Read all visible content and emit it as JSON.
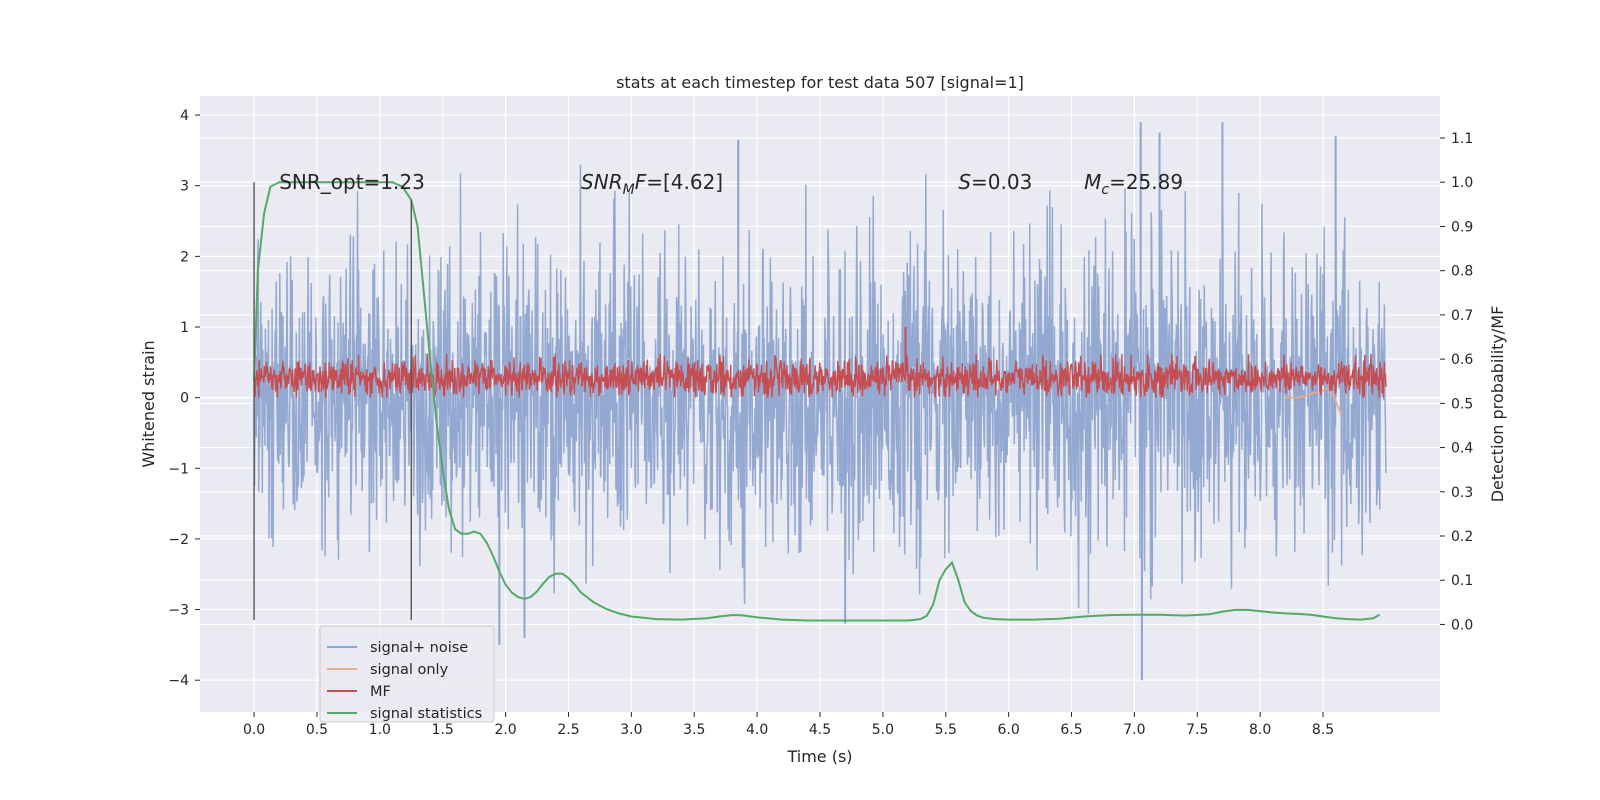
{
  "chart_data": {
    "type": "line",
    "title": "stats at each timestep for test data 507 [signal=1]",
    "xlabel": "Time (s)",
    "ylabel_left": "Whitened strain",
    "ylabel_right": "Detection probability/MF",
    "xlim": [
      -0.43,
      9.43
    ],
    "ylim_left": [
      -4.45,
      4.27
    ],
    "ylim_right": [
      -0.198,
      1.195
    ],
    "x_ticks": [
      0.0,
      0.5,
      1.0,
      1.5,
      2.0,
      2.5,
      3.0,
      3.5,
      4.0,
      4.5,
      5.0,
      5.5,
      6.0,
      6.5,
      7.0,
      7.5,
      8.0,
      8.5
    ],
    "x_tick_labels": [
      "0.0",
      "0.5",
      "1.0",
      "1.5",
      "2.0",
      "2.5",
      "3.0",
      "3.5",
      "4.0",
      "4.5",
      "5.0",
      "5.5",
      "6.0",
      "6.5",
      "7.0",
      "7.5",
      "8.0",
      "8.5"
    ],
    "y_left_ticks": [
      -4,
      -3,
      -2,
      -1,
      0,
      1,
      2,
      3,
      4
    ],
    "y_left_tick_labels": [
      "−4",
      "−3",
      "−2",
      "−1",
      "0",
      "1",
      "2",
      "3",
      "4"
    ],
    "y_right_ticks": [
      0.0,
      0.1,
      0.2,
      0.3,
      0.4,
      0.5,
      0.6,
      0.7,
      0.8,
      0.9,
      1.0,
      1.1
    ],
    "y_right_tick_labels": [
      "0.0",
      "0.1",
      "0.2",
      "0.3",
      "0.4",
      "0.5",
      "0.6",
      "0.7",
      "0.8",
      "0.9",
      "1.0",
      "1.1"
    ],
    "annotations": [
      {
        "id": "snr-opt",
        "text": "SNR_opt=1.23",
        "x": 0.2,
        "y": 3.05
      },
      {
        "id": "snr-mf",
        "text": "SNR_MF=[4.62]",
        "x": 2.6,
        "y": 3.05
      },
      {
        "id": "s-value",
        "text": "S=0.03",
        "x": 5.6,
        "y": 3.05
      },
      {
        "id": "mc-value",
        "text": "M_c=25.89",
        "x": 6.6,
        "y": 3.05
      }
    ],
    "vertical_lines": [
      {
        "x": 0.0,
        "y_range": [
          -3.15,
          3.05
        ]
      },
      {
        "x": 1.25,
        "y_range": [
          -3.15,
          2.8
        ]
      }
    ],
    "legend_position": "lower-left",
    "series": [
      {
        "name": "signal+ noise",
        "axis": "left",
        "color": "#8fa5cf",
        "description": "whitened strain noise, approx. range [-3.9, 3.9]",
        "x_range": [
          0.0,
          9.0
        ],
        "peaks": [
          {
            "x": 3.85,
            "y": 3.65
          },
          {
            "x": 7.05,
            "y": 3.9
          },
          {
            "x": 7.2,
            "y": 3.75
          },
          {
            "x": 7.7,
            "y": 3.9
          },
          {
            "x": 8.6,
            "y": 3.7
          },
          {
            "x": 7.06,
            "y": -4.0
          },
          {
            "x": 1.95,
            "y": -3.5
          },
          {
            "x": 2.15,
            "y": -3.4
          },
          {
            "x": 4.7,
            "y": -3.2
          }
        ]
      },
      {
        "name": "signal only",
        "axis": "left",
        "color": "#e9a98b",
        "x": [
          8.2,
          8.3,
          8.4,
          8.5,
          8.55,
          8.6,
          8.65
        ],
        "y": [
          0.0,
          0.0,
          0.05,
          0.1,
          0.15,
          -0.05,
          -0.25
        ]
      },
      {
        "name": "MF",
        "axis": "left",
        "color": "#c44e52",
        "description": "matched filter output, fluctuating between about 0.0 and 0.6",
        "x_range": [
          0.0,
          9.0
        ],
        "peaks": [
          {
            "x": 5.18,
            "y": 1.0
          }
        ]
      },
      {
        "name": "signal statistics",
        "axis": "right",
        "color": "#55a868",
        "x": [
          0.0,
          0.03,
          0.08,
          0.13,
          0.2,
          0.3,
          0.5,
          0.8,
          1.0,
          1.1,
          1.18,
          1.25,
          1.3,
          1.35,
          1.4,
          1.45,
          1.5,
          1.55,
          1.6,
          1.65,
          1.7,
          1.75,
          1.8,
          1.85,
          1.9,
          1.95,
          2.0,
          2.05,
          2.1,
          2.15,
          2.2,
          2.25,
          2.3,
          2.35,
          2.4,
          2.45,
          2.5,
          2.55,
          2.6,
          2.7,
          2.8,
          2.9,
          3.0,
          3.2,
          3.4,
          3.6,
          3.7,
          3.8,
          3.85,
          3.9,
          4.0,
          4.2,
          4.4,
          4.6,
          4.8,
          5.0,
          5.2,
          5.3,
          5.35,
          5.4,
          5.45,
          5.5,
          5.55,
          5.6,
          5.65,
          5.7,
          5.75,
          5.8,
          5.9,
          6.0,
          6.2,
          6.4,
          6.6,
          6.8,
          7.0,
          7.2,
          7.4,
          7.6,
          7.7,
          7.8,
          7.9,
          8.0,
          8.1,
          8.2,
          8.3,
          8.4,
          8.5,
          8.6,
          8.7,
          8.8,
          8.9,
          8.95
        ],
        "y": [
          0.55,
          0.8,
          0.93,
          0.99,
          1.0,
          1.0,
          1.0,
          1.0,
          1.0,
          1.0,
          0.99,
          0.96,
          0.9,
          0.75,
          0.6,
          0.46,
          0.35,
          0.26,
          0.215,
          0.205,
          0.205,
          0.21,
          0.205,
          0.185,
          0.155,
          0.12,
          0.09,
          0.072,
          0.062,
          0.058,
          0.062,
          0.075,
          0.093,
          0.108,
          0.115,
          0.115,
          0.105,
          0.09,
          0.072,
          0.05,
          0.035,
          0.025,
          0.018,
          0.012,
          0.011,
          0.014,
          0.018,
          0.021,
          0.021,
          0.02,
          0.016,
          0.011,
          0.009,
          0.009,
          0.009,
          0.009,
          0.009,
          0.012,
          0.02,
          0.045,
          0.1,
          0.125,
          0.14,
          0.1,
          0.05,
          0.03,
          0.02,
          0.015,
          0.012,
          0.011,
          0.011,
          0.013,
          0.018,
          0.021,
          0.022,
          0.022,
          0.02,
          0.023,
          0.029,
          0.033,
          0.033,
          0.03,
          0.027,
          0.025,
          0.024,
          0.022,
          0.018,
          0.014,
          0.012,
          0.011,
          0.014,
          0.022
        ]
      }
    ]
  }
}
